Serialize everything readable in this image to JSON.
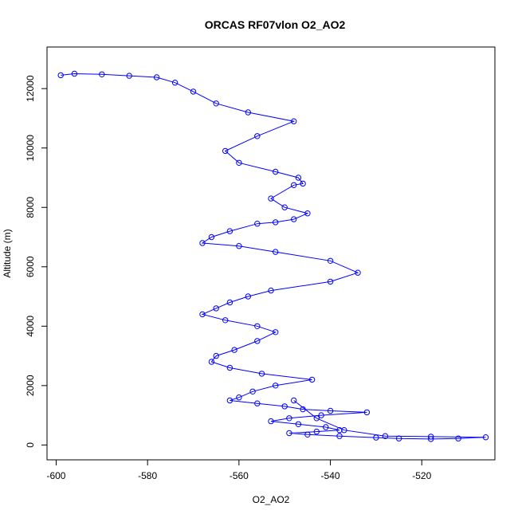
{
  "chart_data": {
    "type": "line",
    "title": "ORCAS RF07vlon O2_AO2",
    "xlabel": "O2_AO2",
    "ylabel": "Altitude (m)",
    "xlim": [
      -602,
      -504
    ],
    "ylim": [
      -500,
      13400
    ],
    "x_ticks": [
      -600,
      -580,
      -560,
      -540,
      -520
    ],
    "y_ticks": [
      0,
      2000,
      4000,
      6000,
      8000,
      10000,
      12000
    ],
    "x_tick_labels": [
      "-600",
      "-580",
      "-560",
      "-540",
      "-520"
    ],
    "y_tick_labels": [
      "0",
      "2000",
      "4000",
      "6000",
      "8000",
      "10000",
      "12000"
    ],
    "grid": false,
    "marker": "open-circle",
    "series": [
      {
        "color": "#0000ff",
        "x": [
          -599.0,
          -596.0,
          -590.0,
          -584.0,
          -578.0,
          -574.0,
          -570.0,
          -565.0,
          -558.0,
          -548.0,
          -556.0,
          -563.0,
          -560.0,
          -552.0,
          -547.0,
          -546.0,
          -548.0,
          -553.0,
          -550.0,
          -545.0,
          -548.0,
          -552.0,
          -556.0,
          -562.0,
          -566.0,
          -568.0,
          -560.0,
          -552.0,
          -540.0,
          -534.0,
          -540.0,
          -553.0,
          -558.0,
          -562.0,
          -565.0,
          -568.0,
          -563.0,
          -556.0,
          -552.0,
          -556.0,
          -561.0,
          -565.0,
          -566.0,
          -562.0,
          -555.0,
          -544.0,
          -552.0,
          -557.0,
          -560.0,
          -562.0,
          -556.0,
          -550.0,
          -546.0,
          -540.0,
          -532.0,
          -542.0,
          -549.0,
          -553.0,
          -547.0,
          -541.0,
          -538.0,
          -543.0,
          -549.0,
          -545.0,
          -538.0,
          -530.0,
          -525.0,
          -518.0,
          -512.0,
          -506.0,
          -518.0,
          -528.0,
          -537.0,
          -543.0,
          -548.0
        ],
        "y": [
          12450,
          12500,
          12480,
          12430,
          12380,
          12200,
          11900,
          11500,
          11200,
          10900,
          10400,
          9900,
          9500,
          9200,
          9000,
          8800,
          8750,
          8300,
          8000,
          7800,
          7600,
          7500,
          7450,
          7200,
          7000,
          6800,
          6700,
          6500,
          6200,
          5800,
          5500,
          5200,
          5000,
          4800,
          4600,
          4400,
          4200,
          4000,
          3800,
          3500,
          3200,
          3000,
          2800,
          2600,
          2400,
          2200,
          2000,
          1800,
          1600,
          1500,
          1400,
          1300,
          1200,
          1150,
          1100,
          1000,
          900,
          800,
          700,
          600,
          500,
          450,
          400,
          350,
          300,
          250,
          220,
          200,
          220,
          260,
          280,
          300,
          500,
          900,
          1500
        ]
      }
    ]
  }
}
